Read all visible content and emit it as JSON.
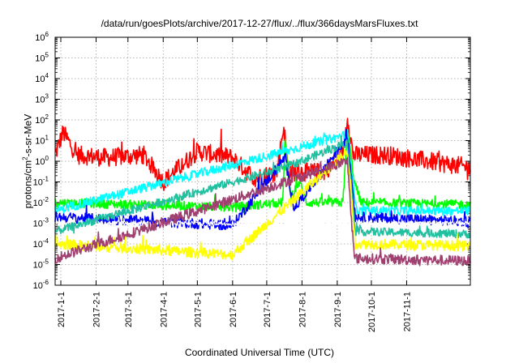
{
  "chart_data": {
    "type": "line",
    "title": "/data/run/goesPlots/archive/2017-12-27/flux/../flux/366daysMarsFluxes.txt",
    "xlabel": "Coordinated Universal Time (UTC)",
    "ylabel_prefix": "protons/cm",
    "ylabel_sup": "2",
    "ylabel_suffix": "-s-sr-MeV",
    "yscale": "log",
    "ylim": [
      1e-06,
      1000000.0
    ],
    "xlim": [
      "2016-12-27",
      "2017-12-27"
    ],
    "grid": true,
    "legend": "none",
    "y_ticks": [
      {
        "value": 1e-06,
        "base": "10",
        "exp": "-6"
      },
      {
        "value": 1e-05,
        "base": "10",
        "exp": "-5"
      },
      {
        "value": 0.0001,
        "base": "10",
        "exp": "-4"
      },
      {
        "value": 0.001,
        "base": "10",
        "exp": "-3"
      },
      {
        "value": 0.01,
        "base": "10",
        "exp": "-2"
      },
      {
        "value": 0.1,
        "base": "10",
        "exp": "-1"
      },
      {
        "value": 1.0,
        "base": "10",
        "exp": "0"
      },
      {
        "value": 10.0,
        "base": "10",
        "exp": "1"
      },
      {
        "value": 100.0,
        "base": "10",
        "exp": "2"
      },
      {
        "value": 1000.0,
        "base": "10",
        "exp": "3"
      },
      {
        "value": 10000.0,
        "base": "10",
        "exp": "4"
      },
      {
        "value": 100000.0,
        "base": "10",
        "exp": "5"
      },
      {
        "value": 1000000.0,
        "base": "10",
        "exp": "6"
      }
    ],
    "x_ticks": [
      "2017-1-1",
      "2017-2-1",
      "2017-3-1",
      "2017-4-1",
      "2017-5-1",
      "2017-6-1",
      "2017-7-1",
      "2017-8-1",
      "2017-9-1",
      "2017-10-1",
      "2017-11-1"
    ],
    "series": [
      {
        "color": "#ff0000",
        "baseline": 1.5,
        "noise": 0.45,
        "points": [
          [
            "2016-12-27",
            2.0
          ],
          [
            "2017-01-03",
            25
          ],
          [
            "2017-01-15",
            2
          ],
          [
            "2017-02-10",
            1.5
          ],
          [
            "2017-03-15",
            2
          ],
          [
            "2017-04-01",
            0.1
          ],
          [
            "2017-05-01",
            3
          ],
          [
            "2017-06-01",
            1.5
          ],
          [
            "2017-06-20",
            0.15
          ],
          [
            "2017-07-10",
            0.3
          ],
          [
            "2017-07-16",
            50
          ],
          [
            "2017-07-20",
            0.3
          ],
          [
            "2017-08-20",
            0.3
          ],
          [
            "2017-09-06",
            2
          ],
          [
            "2017-09-10",
            150
          ],
          [
            "2017-09-15",
            2
          ],
          [
            "2017-10-15",
            2
          ],
          [
            "2017-12-27",
            0.5
          ]
        ]
      },
      {
        "color": "#00ff00",
        "baseline": 0.008,
        "noise": 0.22,
        "points": [
          [
            "2016-12-27",
            0.01
          ],
          [
            "2017-06-01",
            0.006
          ],
          [
            "2017-07-15",
            0.01
          ],
          [
            "2017-07-17",
            10
          ],
          [
            "2017-07-22",
            0.02
          ],
          [
            "2017-07-30",
            0.1
          ],
          [
            "2017-08-05",
            0.01
          ],
          [
            "2017-09-06",
            0.01
          ],
          [
            "2017-09-10",
            40
          ],
          [
            "2017-09-16",
            0.1
          ],
          [
            "2017-09-22",
            0.01
          ],
          [
            "2017-12-27",
            0.008
          ]
        ]
      },
      {
        "color": "#00ffff",
        "baseline": 0.004,
        "noise": 0.22,
        "points": [
          [
            "2016-12-27",
            0.004
          ],
          [
            "2017-07-17",
            3
          ],
          [
            "2017-09-10",
            20
          ],
          [
            "2017-09-18",
            0.004
          ],
          [
            "2017-12-27",
            0.004
          ]
        ]
      },
      {
        "color": "#0000ff",
        "baseline": 0.0015,
        "noise": 0.25,
        "points": [
          [
            "2016-12-27",
            0.002
          ],
          [
            "2017-06-01",
            0.0008
          ],
          [
            "2017-07-17",
            1.5
          ],
          [
            "2017-07-25",
            0.005
          ],
          [
            "2017-09-10",
            15
          ],
          [
            "2017-09-17",
            0.002
          ],
          [
            "2017-12-27",
            0.0012
          ]
        ]
      },
      {
        "color": "#ffffff",
        "baseline": 0.001,
        "noise": 0.12,
        "points": [
          [
            "2016-12-27",
            0.001
          ],
          [
            "2017-12-27",
            0.001
          ]
        ]
      },
      {
        "color": "#20c0a0",
        "baseline": 0.00035,
        "noise": 0.2,
        "points": [
          [
            "2016-12-27",
            0.0004
          ],
          [
            "2017-07-17",
            0.5
          ],
          [
            "2017-09-10",
            8
          ],
          [
            "2017-09-17",
            0.0004
          ],
          [
            "2017-12-27",
            0.0003
          ]
        ]
      },
      {
        "color": "#ffff00",
        "baseline": 8e-05,
        "noise": 0.25,
        "points": [
          [
            "2016-12-27",
            0.0001
          ],
          [
            "2017-06-01",
            3e-05
          ],
          [
            "2017-09-10",
            3
          ],
          [
            "2017-09-17",
            0.0001
          ],
          [
            "2017-12-27",
            8e-05
          ]
        ]
      },
      {
        "color": "#a04070",
        "baseline": 2e-05,
        "noise": 0.25,
        "points": [
          [
            "2016-12-27",
            2e-05
          ],
          [
            "2017-09-10",
            1
          ],
          [
            "2017-09-16",
            2e-05
          ],
          [
            "2017-12-27",
            1.5e-05
          ]
        ]
      }
    ]
  }
}
